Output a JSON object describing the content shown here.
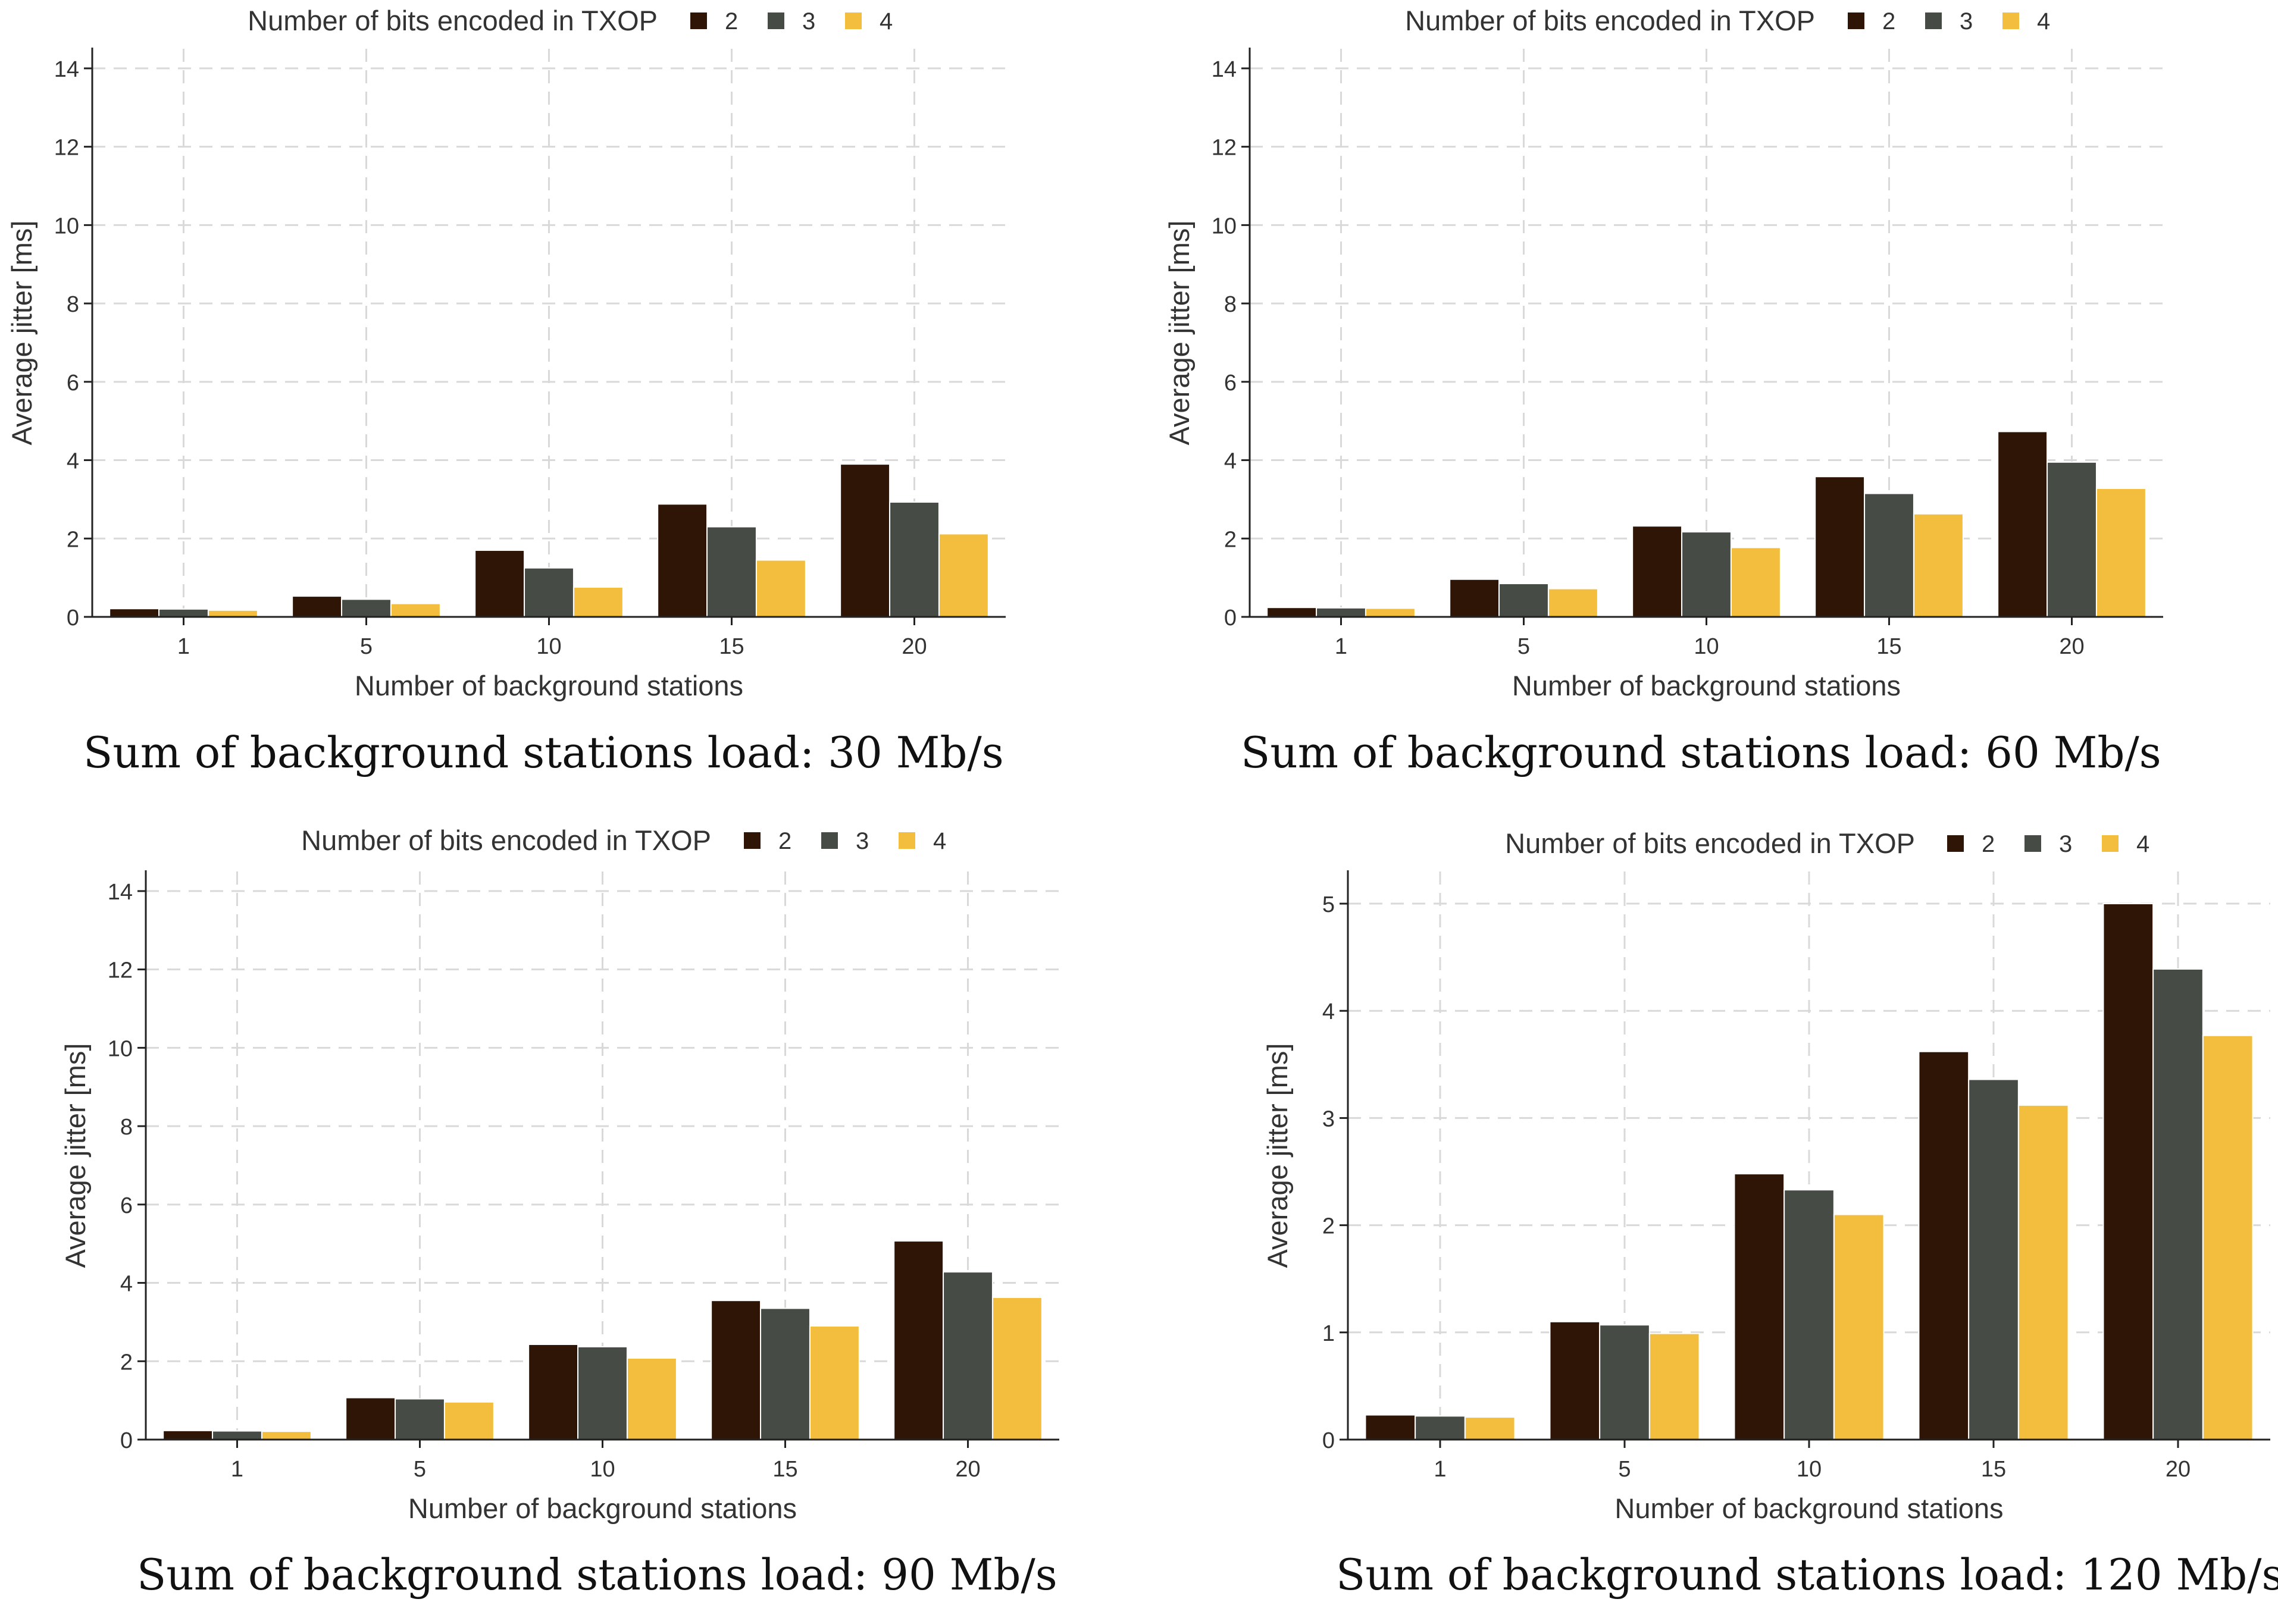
{
  "legend_title": "Number of bits encoded in TXOP",
  "series_colors": [
    "#2e1505",
    "#464b45",
    "#f3bd3d"
  ],
  "chart_data": [
    {
      "type": "bar",
      "title": "",
      "caption": "Sum of background stations load: 30 Mb/s",
      "xlabel": "Number of background stations",
      "ylabel": "Average jitter [ms]",
      "categories": [
        "1",
        "5",
        "10",
        "15",
        "20"
      ],
      "ylim": [
        0,
        14.5
      ],
      "yticks": [
        0,
        2,
        4,
        6,
        8,
        10,
        12,
        14
      ],
      "grid": true,
      "legend_position": "top",
      "series": [
        {
          "name": "2",
          "values": [
            0.21,
            0.53,
            1.7,
            2.88,
            3.9
          ]
        },
        {
          "name": "3",
          "values": [
            0.2,
            0.45,
            1.25,
            2.3,
            2.93
          ]
        },
        {
          "name": "4",
          "values": [
            0.17,
            0.34,
            0.76,
            1.45,
            2.12
          ]
        }
      ]
    },
    {
      "type": "bar",
      "title": "",
      "caption": "Sum of background stations load: 60 Mb/s",
      "xlabel": "Number of background stations",
      "ylabel": "Average jitter [ms]",
      "categories": [
        "1",
        "5",
        "10",
        "15",
        "20"
      ],
      "ylim": [
        0,
        14.5
      ],
      "yticks": [
        0,
        2,
        4,
        6,
        8,
        10,
        12,
        14
      ],
      "grid": true,
      "legend_position": "top",
      "series": [
        {
          "name": "2",
          "values": [
            0.24,
            0.96,
            2.32,
            3.58,
            4.73
          ]
        },
        {
          "name": "3",
          "values": [
            0.23,
            0.85,
            2.17,
            3.15,
            3.95
          ]
        },
        {
          "name": "4",
          "values": [
            0.22,
            0.72,
            1.77,
            2.63,
            3.28
          ]
        }
      ]
    },
    {
      "type": "bar",
      "title": "",
      "caption": "Sum of background stations load: 90 Mb/s",
      "xlabel": "Number of background stations",
      "ylabel": "Average jitter [ms]",
      "categories": [
        "1",
        "5",
        "10",
        "15",
        "20"
      ],
      "ylim": [
        0,
        14.5
      ],
      "yticks": [
        0,
        2,
        4,
        6,
        8,
        10,
        12,
        14
      ],
      "grid": true,
      "legend_position": "top",
      "series": [
        {
          "name": "2",
          "values": [
            0.23,
            1.07,
            2.43,
            3.55,
            5.07
          ]
        },
        {
          "name": "3",
          "values": [
            0.22,
            1.04,
            2.37,
            3.35,
            4.28
          ]
        },
        {
          "name": "4",
          "values": [
            0.21,
            0.96,
            2.08,
            2.9,
            3.63
          ]
        }
      ]
    },
    {
      "type": "bar",
      "title": "",
      "caption": "Sum of background stations load: 120 Mb/s",
      "xlabel": "Number of background stations",
      "ylabel": "Average jitter [ms]",
      "categories": [
        "1",
        "5",
        "10",
        "15",
        "20"
      ],
      "ylim": [
        0,
        5.3
      ],
      "yticks": [
        0,
        1,
        2,
        3,
        4,
        5
      ],
      "grid": true,
      "legend_position": "top",
      "series": [
        {
          "name": "2",
          "values": [
            0.23,
            1.1,
            2.48,
            3.62,
            5.0
          ]
        },
        {
          "name": "3",
          "values": [
            0.22,
            1.07,
            2.33,
            3.36,
            4.39
          ]
        },
        {
          "name": "4",
          "values": [
            0.21,
            0.99,
            2.1,
            3.12,
            3.77
          ]
        }
      ]
    }
  ]
}
